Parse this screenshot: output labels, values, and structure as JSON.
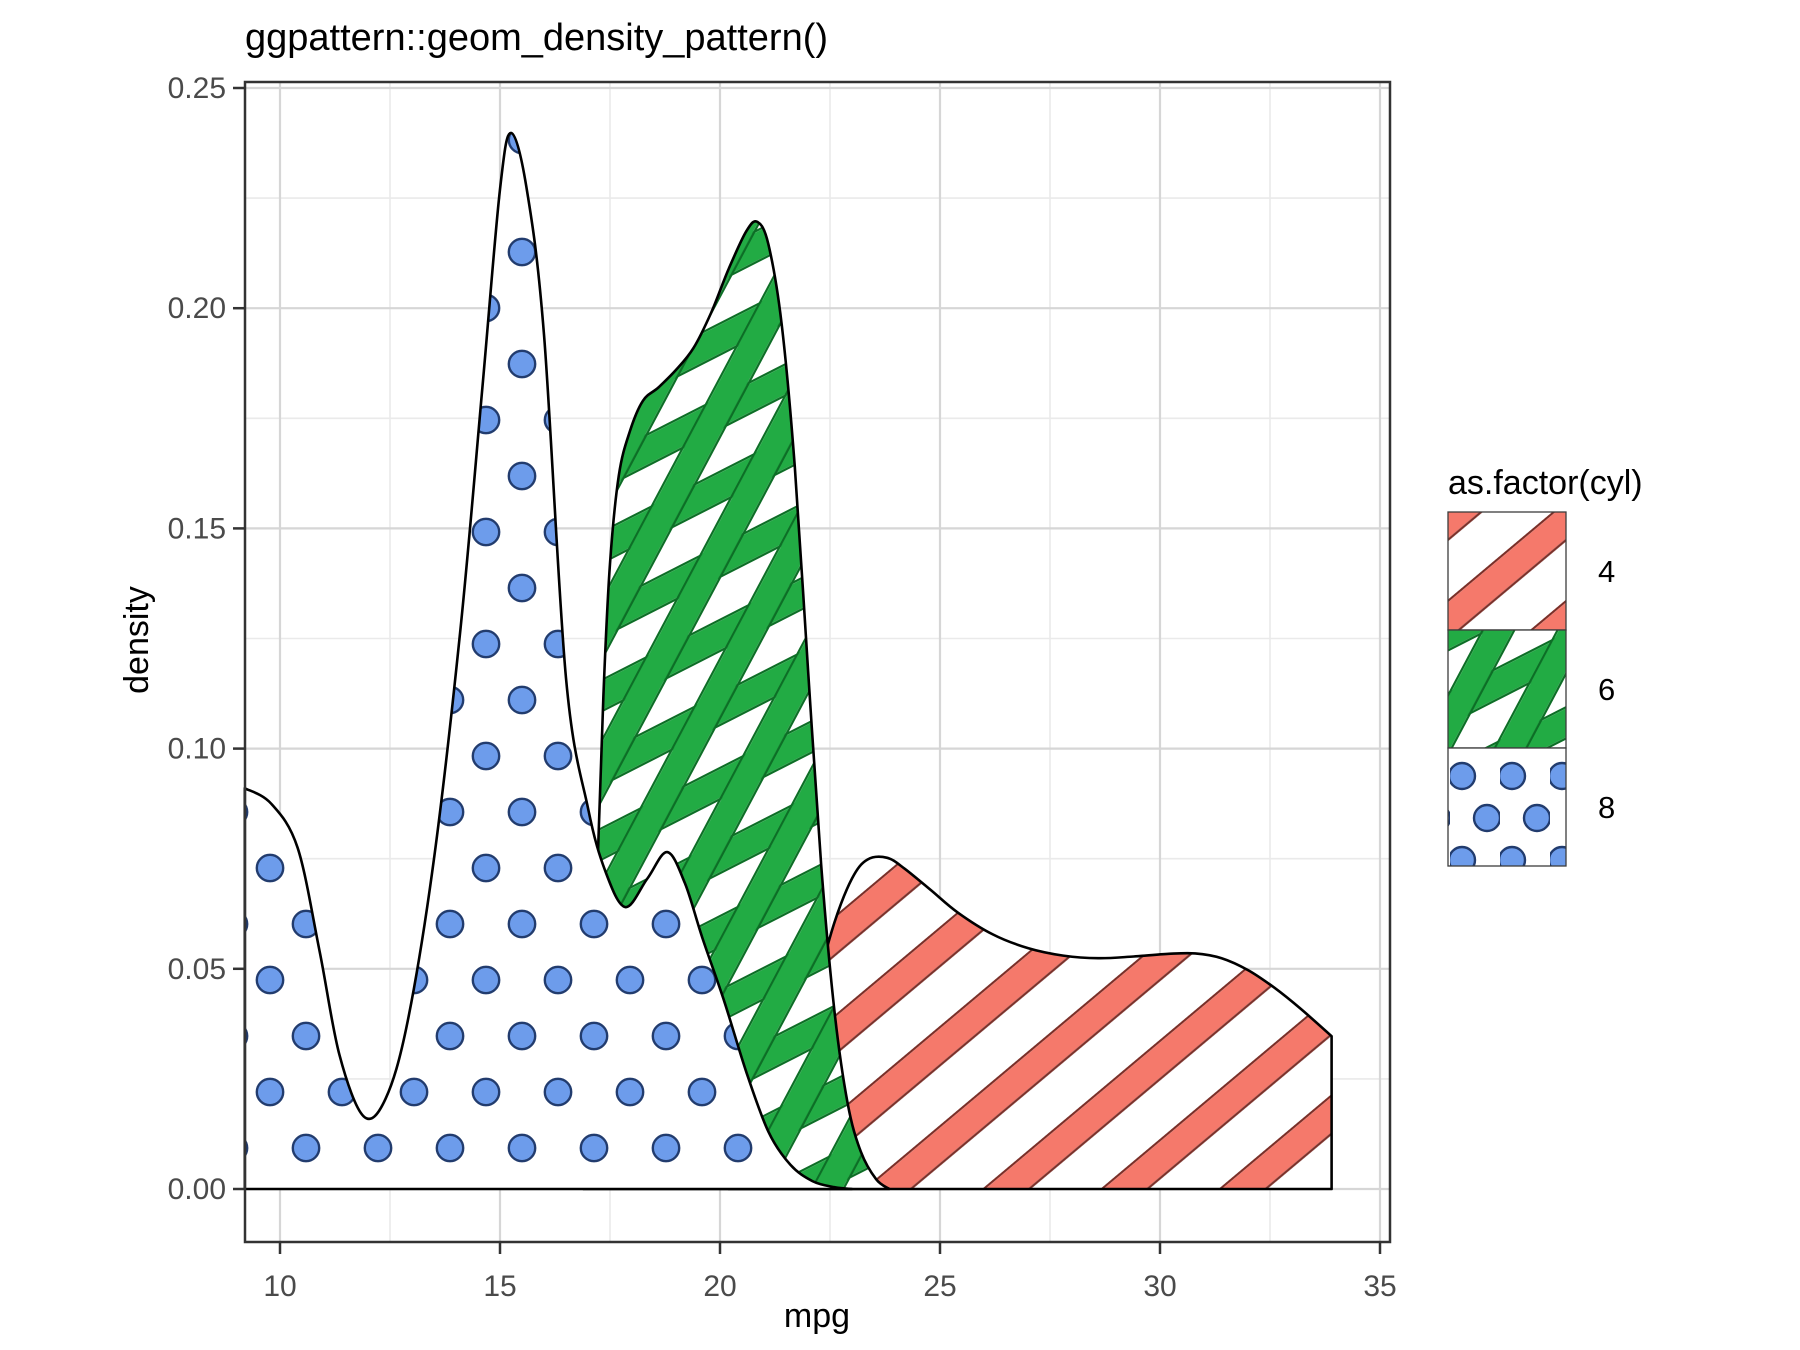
{
  "title": "ggpattern::geom_density_pattern()",
  "axes": {
    "x": {
      "label": "mpg",
      "tick_labels": [
        "10",
        "15",
        "20",
        "25",
        "30",
        "35"
      ],
      "tick_values": [
        10,
        15,
        20,
        25,
        30,
        35
      ],
      "minor_values": [
        12.5,
        17.5,
        22.5,
        27.5,
        32.5
      ]
    },
    "y": {
      "label": "density",
      "tick_labels": [
        "0.00",
        "0.05",
        "0.10",
        "0.15",
        "0.20",
        "0.25"
      ],
      "tick_values": [
        0,
        0.05,
        0.1,
        0.15,
        0.2,
        0.25
      ],
      "minor_values": [
        0.025,
        0.075,
        0.125,
        0.175,
        0.225
      ]
    }
  },
  "legend": {
    "title": "as.factor(cyl)",
    "entries": [
      {
        "label": "4",
        "pattern": "stripe"
      },
      {
        "label": "6",
        "pattern": "crosshatch"
      },
      {
        "label": "8",
        "pattern": "circle"
      }
    ]
  },
  "colors": {
    "stripe_fill": "#F5796B",
    "stripe_edge": "#7A2F28",
    "crosshatch_fill": "#22AB44",
    "crosshatch_edge": "#0D6E26",
    "circle_fill": "#6D9CEB",
    "circle_edge": "#223C6E",
    "area_outline": "#000000",
    "grid_major": "#D6D6D6",
    "grid_minor": "#EAEAEA",
    "panel_border": "#333333",
    "tick_text": "#4A4A4A"
  },
  "chart_data": {
    "type": "area",
    "subtype": "density",
    "title": "ggpattern::geom_density_pattern()",
    "xlabel": "mpg",
    "ylabel": "density",
    "xlim": [
      9.2,
      35.2
    ],
    "ylim": [
      -0.012,
      0.252
    ],
    "grid": true,
    "legend_position": "right",
    "series": [
      {
        "name": "4",
        "pattern": "stripe",
        "closed_right": true,
        "points": [
          [
            20.2,
            0
          ],
          [
            20.7,
            0.0035
          ],
          [
            21.2,
            0.011
          ],
          [
            21.7,
            0.026
          ],
          [
            22.2,
            0.046
          ],
          [
            22.6,
            0.0605
          ],
          [
            23.0,
            0.0705
          ],
          [
            23.35,
            0.0748
          ],
          [
            23.8,
            0.0752
          ],
          [
            24.2,
            0.0727
          ],
          [
            24.8,
            0.0678
          ],
          [
            25.4,
            0.0628
          ],
          [
            26.2,
            0.0578
          ],
          [
            27.0,
            0.0547
          ],
          [
            27.8,
            0.053
          ],
          [
            28.6,
            0.0524
          ],
          [
            29.4,
            0.0528
          ],
          [
            30.2,
            0.0534
          ],
          [
            30.8,
            0.0535
          ],
          [
            31.4,
            0.0524
          ],
          [
            32.0,
            0.0497
          ],
          [
            32.6,
            0.0457
          ],
          [
            33.2,
            0.0409
          ],
          [
            33.9,
            0.0347
          ]
        ]
      },
      {
        "name": "6",
        "pattern": "crosshatch",
        "closed_right": false,
        "points": [
          [
            16.9,
            0
          ],
          [
            17.05,
            0.02
          ],
          [
            17.2,
            0.068
          ],
          [
            17.35,
            0.112
          ],
          [
            17.5,
            0.142
          ],
          [
            17.7,
            0.162
          ],
          [
            17.95,
            0.172
          ],
          [
            18.25,
            0.179
          ],
          [
            18.6,
            0.182
          ],
          [
            19.0,
            0.186
          ],
          [
            19.4,
            0.191
          ],
          [
            19.8,
            0.199
          ],
          [
            20.2,
            0.209
          ],
          [
            20.6,
            0.2175
          ],
          [
            20.85,
            0.2196
          ],
          [
            21.1,
            0.2145
          ],
          [
            21.4,
            0.1965
          ],
          [
            21.7,
            0.164
          ],
          [
            22.0,
            0.118
          ],
          [
            22.3,
            0.0735
          ],
          [
            22.6,
            0.0405
          ],
          [
            22.9,
            0.0195
          ],
          [
            23.2,
            0.0085
          ],
          [
            23.55,
            0.0022
          ],
          [
            23.85,
            0
          ]
        ]
      },
      {
        "name": "8",
        "pattern": "circle",
        "closed_right": false,
        "points": [
          [
            9.2,
            0.091
          ],
          [
            9.8,
            0.0875
          ],
          [
            10.4,
            0.0775
          ],
          [
            10.9,
            0.054
          ],
          [
            11.35,
            0.0305
          ],
          [
            11.9,
            0.0165
          ],
          [
            12.4,
            0.0205
          ],
          [
            12.9,
            0.038
          ],
          [
            13.5,
            0.075
          ],
          [
            14.1,
            0.127
          ],
          [
            14.6,
            0.182
          ],
          [
            15.0,
            0.227
          ],
          [
            15.25,
            0.2398
          ],
          [
            15.6,
            0.2275
          ],
          [
            16.0,
            0.194
          ],
          [
            16.5,
            0.116
          ],
          [
            17.0,
            0.0865
          ],
          [
            17.4,
            0.072
          ],
          [
            17.85,
            0.064
          ],
          [
            18.35,
            0.0705
          ],
          [
            18.8,
            0.0765
          ],
          [
            19.2,
            0.0695
          ],
          [
            19.6,
            0.057
          ],
          [
            20.1,
            0.0425
          ],
          [
            20.6,
            0.0265
          ],
          [
            21.1,
            0.013
          ],
          [
            21.6,
            0.0055
          ],
          [
            22.1,
            0.0018
          ],
          [
            22.6,
            0.0004
          ],
          [
            23.0,
            0
          ]
        ]
      }
    ]
  }
}
